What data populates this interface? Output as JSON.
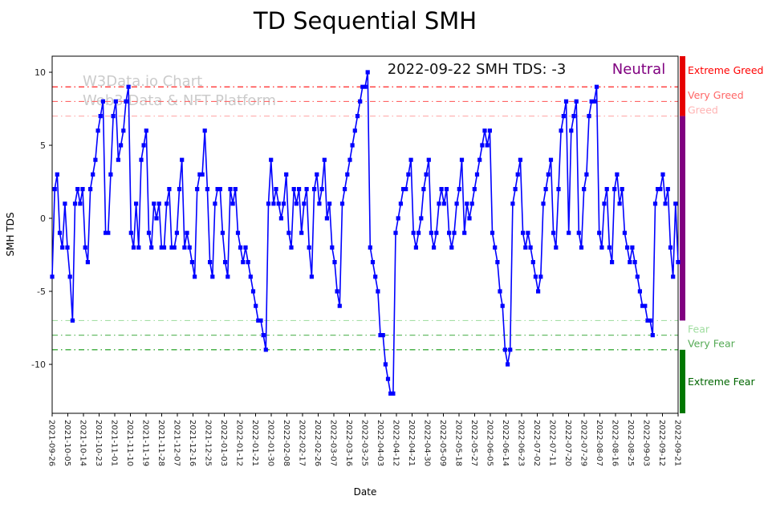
{
  "title": "TD Sequential SMH",
  "annotation": {
    "text": "2022-09-22 SMH TDS: -3",
    "status": "Neutral",
    "status_color": "#800080"
  },
  "watermark": {
    "line1": "W3Data.io Chart",
    "line2": "Web3 Data & NFT Platform",
    "color": "#cbcbcb"
  },
  "chart_data": {
    "type": "line",
    "title": "TD Sequential SMH",
    "xlabel": "Date",
    "ylabel": "SMH TDS",
    "ylim": [
      -13.35,
      11.1
    ],
    "yticks": [
      10,
      5,
      0,
      -5,
      -10
    ],
    "grid": false,
    "line_color": "#0000ff",
    "marker": "square",
    "x_tick_labels": [
      "2021-09-26",
      "2021-10-05",
      "2021-10-14",
      "2021-10-23",
      "2021-11-01",
      "2021-11-10",
      "2021-11-19",
      "2021-11-28",
      "2021-12-07",
      "2021-12-16",
      "2021-12-25",
      "2022-01-03",
      "2022-01-12",
      "2022-01-21",
      "2022-01-30",
      "2022-02-08",
      "2022-02-17",
      "2022-02-26",
      "2022-03-07",
      "2022-03-16",
      "2022-03-25",
      "2022-04-03",
      "2022-04-12",
      "2022-04-21",
      "2022-04-30",
      "2022-05-09",
      "2022-05-18",
      "2022-05-27",
      "2022-06-05",
      "2022-06-14",
      "2022-06-23",
      "2022-07-02",
      "2022-07-11",
      "2022-07-20",
      "2022-07-29",
      "2022-08-07",
      "2022-08-16",
      "2022-08-25",
      "2022-09-03",
      "2022-09-12",
      "2022-09-21"
    ],
    "values": [
      -4,
      2,
      3,
      -1,
      -2,
      1,
      -2,
      -4,
      -7,
      1,
      2,
      1,
      2,
      -2,
      -3,
      2,
      3,
      4,
      6,
      7,
      8,
      -1,
      -1,
      3,
      7,
      8,
      4,
      5,
      6,
      8,
      9,
      -1,
      -2,
      1,
      -2,
      4,
      5,
      6,
      -1,
      -2,
      1,
      0,
      1,
      -2,
      -2,
      1,
      2,
      -2,
      -2,
      -1,
      2,
      4,
      -2,
      -1,
      -2,
      -3,
      -4,
      2,
      3,
      3,
      6,
      2,
      -3,
      -4,
      1,
      2,
      2,
      -1,
      -3,
      -4,
      2,
      1,
      2,
      -1,
      -2,
      -3,
      -2,
      -3,
      -4,
      -5,
      -6,
      -7,
      -7,
      -8,
      -9,
      1,
      4,
      1,
      2,
      1,
      0,
      1,
      3,
      -1,
      -2,
      2,
      1,
      2,
      -1,
      1,
      2,
      -2,
      -4,
      2,
      3,
      1,
      2,
      4,
      0,
      1,
      -2,
      -3,
      -5,
      -6,
      1,
      2,
      3,
      4,
      5,
      6,
      7,
      8,
      9,
      9,
      10,
      -2,
      -3,
      -4,
      -5,
      -8,
      -8,
      -10,
      -11,
      -12,
      -12,
      -1,
      0,
      1,
      2,
      2,
      3,
      4,
      -1,
      -2,
      -1,
      0,
      2,
      3,
      4,
      -1,
      -2,
      -1,
      1,
      2,
      1,
      2,
      -1,
      -2,
      -1,
      1,
      2,
      4,
      -1,
      1,
      0,
      1,
      2,
      3,
      4,
      5,
      6,
      5,
      6,
      -1,
      -2,
      -3,
      -5,
      -6,
      -9,
      -10,
      -9,
      1,
      2,
      3,
      4,
      -1,
      -2,
      -1,
      -2,
      -3,
      -4,
      -5,
      -4,
      1,
      2,
      3,
      4,
      -1,
      -2,
      2,
      6,
      7,
      8,
      -1,
      6,
      7,
      8,
      -1,
      -2,
      2,
      3,
      7,
      8,
      8,
      9,
      -1,
      -2,
      1,
      2,
      -2,
      -3,
      2,
      3,
      1,
      2,
      -1,
      -2,
      -3,
      -2,
      -3,
      -4,
      -5,
      -6,
      -6,
      -7,
      -7,
      -8,
      1,
      2,
      2,
      3,
      1,
      2,
      -2,
      -4,
      1,
      -3
    ],
    "thresholds": [
      {
        "y": 9,
        "color": "#ff2222"
      },
      {
        "y": 8,
        "color": "#ff6666"
      },
      {
        "y": 7,
        "color": "#ffb3b3"
      },
      {
        "y": -7,
        "color": "#a6dfa6"
      },
      {
        "y": -8,
        "color": "#66bb66"
      },
      {
        "y": -9,
        "color": "#119911"
      }
    ],
    "zones": [
      {
        "from": 11.1,
        "to": 7,
        "color": "#e60000",
        "name": "greed-zone"
      },
      {
        "from": 7,
        "to": -7,
        "color": "#800080",
        "name": "neutral-zone"
      },
      {
        "from": -9,
        "to": -13.35,
        "color": "#007700",
        "name": "fear-zone"
      }
    ],
    "zone_labels": [
      {
        "text": "Extreme Greed",
        "y": 10.1,
        "color": "#ff0000"
      },
      {
        "text": "Very Greed",
        "y": 8.4,
        "color": "#ff6666"
      },
      {
        "text": "Greed",
        "y": 7.4,
        "color": "#ffb3b3"
      },
      {
        "text": "Fear",
        "y": -7.6,
        "color": "#9fdd9f"
      },
      {
        "text": "Very Fear",
        "y": -8.6,
        "color": "#55aa55"
      },
      {
        "text": "Extreme Fear",
        "y": -11.2,
        "color": "#006600"
      }
    ]
  }
}
